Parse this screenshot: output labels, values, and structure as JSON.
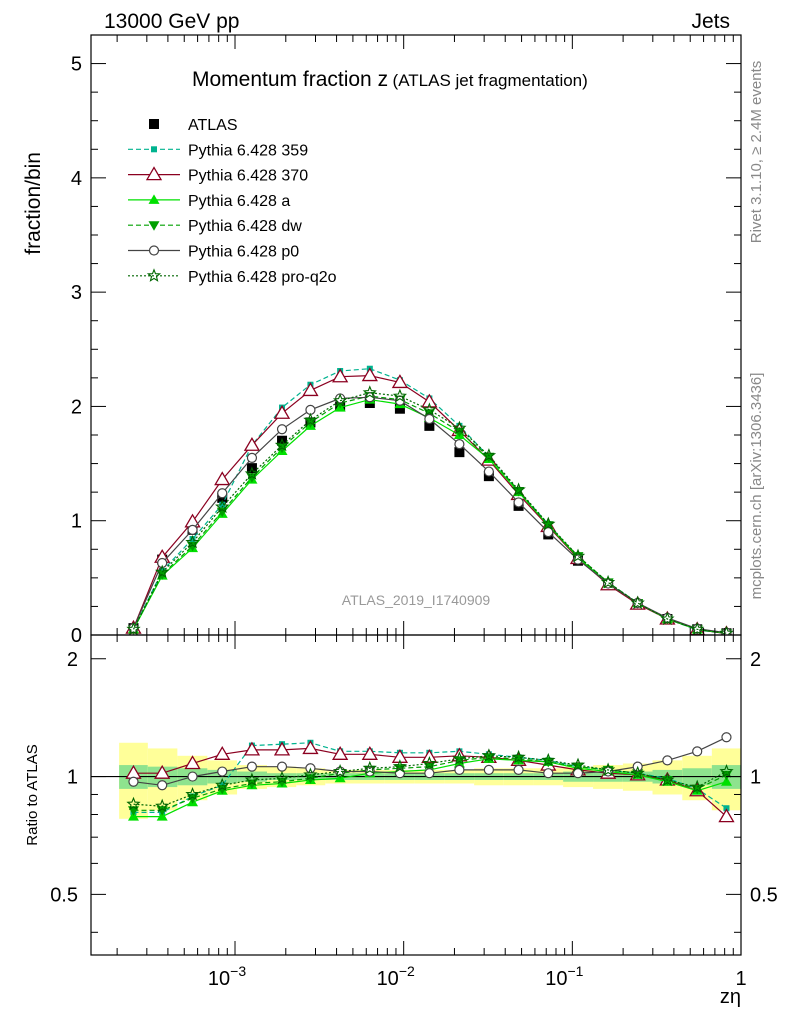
{
  "header": {
    "left": "13000 GeV pp",
    "right": "Jets"
  },
  "side_labels": {
    "rivet": "Rivet 3.1.10, ≥ 2.4M events",
    "mcplots": "mcplots.cern.ch [arXiv:1306.3436]"
  },
  "chart_data": {
    "type": "line",
    "title": "Momentum fraction z",
    "subtitle": "(ATLAS jet fragmentation)",
    "analysis_id": "ATLAS_2019_I1740909",
    "xlabel": "zη",
    "ylabel": "fraction/bin",
    "ratio_ylabel": "Ratio to ATLAS",
    "x_scale": "log",
    "xlim": [
      0.00014,
      1.0
    ],
    "ylim": [
      0,
      5.25
    ],
    "ratio_ylim": [
      0.35,
      2.3
    ],
    "x_ticks": [
      {
        "value": 0.001,
        "base": "10",
        "exp": "−3"
      },
      {
        "value": 0.01,
        "base": "10",
        "exp": "−2"
      },
      {
        "value": 0.1,
        "base": "10",
        "exp": "−1"
      },
      {
        "value": 1,
        "base": "1",
        "exp": ""
      }
    ],
    "y_ticks": [
      "0",
      "1",
      "2",
      "3",
      "4",
      "5"
    ],
    "ratio_ticks": [
      "0.5",
      "1",
      "2"
    ],
    "legend_position": "top-left",
    "x": [
      0.00025,
      0.00037,
      0.00056,
      0.00084,
      0.00126,
      0.0019,
      0.0028,
      0.0042,
      0.0063,
      0.0095,
      0.0142,
      0.0214,
      0.032,
      0.048,
      0.072,
      0.108,
      0.163,
      0.244,
      0.366,
      0.55,
      0.82
    ],
    "band_outer": [
      0.22,
      0.18,
      0.13,
      0.1,
      0.07,
      0.06,
      0.05,
      0.04,
      0.04,
      0.04,
      0.04,
      0.04,
      0.05,
      0.05,
      0.05,
      0.06,
      0.07,
      0.08,
      0.1,
      0.13,
      0.18
    ],
    "band_inner": [
      0.07,
      0.06,
      0.05,
      0.04,
      0.03,
      0.02,
      0.02,
      0.02,
      0.02,
      0.02,
      0.02,
      0.02,
      0.02,
      0.02,
      0.02,
      0.03,
      0.03,
      0.03,
      0.04,
      0.05,
      0.07
    ],
    "series": [
      {
        "name": "ATLAS",
        "color": "#000000",
        "marker": "filled-square",
        "line": "none",
        "draw_line": false,
        "values": [
          0.06,
          0.66,
          0.92,
          1.2,
          1.46,
          1.7,
          1.86,
          2.0,
          2.03,
          1.98,
          1.83,
          1.6,
          1.39,
          1.13,
          0.88,
          0.65,
          0.44,
          0.27,
          0.14,
          0.05,
          0.015
        ],
        "ratio": [
          1,
          1,
          1,
          1,
          1,
          1,
          1,
          1,
          1,
          1,
          1,
          1,
          1,
          1,
          1,
          1,
          1,
          1,
          1,
          1,
          1
        ]
      },
      {
        "name": "Pythia 6.428 359",
        "color": "#00b38f",
        "marker": "small-square",
        "line": "dashed",
        "draw_line": true,
        "values": [
          0.05,
          0.56,
          0.84,
          1.14,
          1.66,
          1.99,
          2.19,
          2.31,
          2.33,
          2.23,
          2.07,
          1.83,
          1.56,
          1.26,
          0.97,
          0.68,
          0.46,
          0.28,
          0.14,
          0.045,
          0.012
        ],
        "ratio": [
          0.81,
          0.81,
          0.89,
          0.95,
          1.2,
          1.21,
          1.22,
          1.16,
          1.16,
          1.15,
          1.15,
          1.16,
          1.14,
          1.12,
          1.1,
          1.06,
          1.04,
          1.02,
          0.99,
          0.93,
          0.83
        ]
      },
      {
        "name": "Pythia 6.428 370",
        "color": "#8b0020",
        "marker": "open-triangle",
        "line": "solid",
        "draw_line": true,
        "values": [
          0.06,
          0.68,
          0.99,
          1.36,
          1.66,
          1.94,
          2.14,
          2.26,
          2.27,
          2.21,
          2.04,
          1.79,
          1.53,
          1.23,
          0.95,
          0.67,
          0.44,
          0.27,
          0.14,
          0.047,
          0.012
        ],
        "ratio": [
          1.02,
          1.02,
          1.08,
          1.14,
          1.17,
          1.17,
          1.18,
          1.14,
          1.14,
          1.12,
          1.12,
          1.13,
          1.12,
          1.1,
          1.07,
          1.04,
          1.02,
          1.01,
          0.98,
          0.92,
          0.79
        ]
      },
      {
        "name": "Pythia 6.428 a",
        "color": "#00e000",
        "marker": "filled-triangle",
        "line": "solid",
        "draw_line": true,
        "values": [
          0.05,
          0.52,
          0.76,
          1.06,
          1.36,
          1.61,
          1.83,
          1.99,
          2.06,
          2.02,
          1.9,
          1.75,
          1.54,
          1.25,
          0.96,
          0.68,
          0.45,
          0.28,
          0.14,
          0.048,
          0.015
        ],
        "ratio": [
          0.79,
          0.79,
          0.86,
          0.92,
          0.95,
          0.96,
          0.98,
          0.99,
          1.02,
          1.03,
          1.04,
          1.08,
          1.11,
          1.1,
          1.09,
          1.05,
          1.03,
          1.01,
          0.97,
          0.92,
          0.97
        ]
      },
      {
        "name": "Pythia 6.428 dw",
        "color": "#00a000",
        "marker": "filled-down-triangle",
        "line": "dashed",
        "draw_line": true,
        "values": [
          0.05,
          0.53,
          0.78,
          1.08,
          1.38,
          1.64,
          1.86,
          2.03,
          2.09,
          2.06,
          1.94,
          1.78,
          1.56,
          1.26,
          0.96,
          0.69,
          0.46,
          0.28,
          0.14,
          0.05,
          0.015
        ],
        "ratio": [
          0.82,
          0.82,
          0.88,
          0.93,
          0.96,
          0.97,
          0.99,
          1.02,
          1.04,
          1.05,
          1.06,
          1.1,
          1.12,
          1.11,
          1.09,
          1.06,
          1.04,
          1.02,
          0.98,
          0.93,
          1.01
        ]
      },
      {
        "name": "Pythia 6.428 p0",
        "color": "#444444",
        "marker": "open-circle",
        "line": "solid",
        "draw_line": true,
        "values": [
          0.06,
          0.63,
          0.92,
          1.24,
          1.55,
          1.8,
          1.97,
          2.07,
          2.08,
          2.05,
          1.89,
          1.67,
          1.43,
          1.16,
          0.9,
          0.66,
          0.45,
          0.28,
          0.15,
          0.055,
          0.02
        ],
        "ratio": [
          0.97,
          0.95,
          1.0,
          1.03,
          1.06,
          1.06,
          1.05,
          1.03,
          1.03,
          1.02,
          1.02,
          1.04,
          1.04,
          1.04,
          1.02,
          1.02,
          1.03,
          1.06,
          1.1,
          1.16,
          1.26
        ]
      },
      {
        "name": "Pythia 6.428 pro-q2o",
        "color": "#006600",
        "marker": "open-star",
        "line": "dotted",
        "draw_line": true,
        "values": [
          0.05,
          0.55,
          0.81,
          1.12,
          1.41,
          1.66,
          1.88,
          2.05,
          2.12,
          2.09,
          1.97,
          1.81,
          1.57,
          1.27,
          0.97,
          0.69,
          0.46,
          0.28,
          0.14,
          0.05,
          0.016
        ],
        "ratio": [
          0.85,
          0.84,
          0.9,
          0.95,
          0.98,
          0.99,
          1.01,
          1.03,
          1.05,
          1.06,
          1.08,
          1.11,
          1.13,
          1.12,
          1.1,
          1.07,
          1.04,
          1.02,
          0.98,
          0.94,
          1.03
        ]
      }
    ]
  }
}
